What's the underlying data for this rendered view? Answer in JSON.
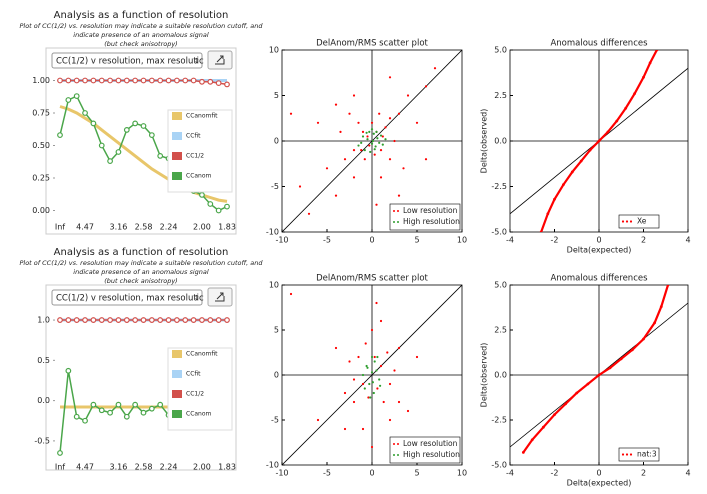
{
  "chart_data": [
    {
      "type": "line",
      "title": "Analysis as a function of resolution",
      "subtitle": [
        "Plot of CC(1/2) vs. resolution may indicate a suitable resolution cutoff, and",
        "indicate presence of an anomalous signal",
        "(but check anisotropy)"
      ],
      "selector": "CC(1/2) v resolution, max resolutic",
      "categories": [
        "Inf",
        null,
        null,
        "4.47",
        null,
        null,
        null,
        "3.16",
        null,
        null,
        "2.58",
        null,
        null,
        "2.24",
        null,
        null,
        null,
        "2.00",
        null,
        null,
        "1.83"
      ],
      "ylim": [
        -0.05,
        1.05
      ],
      "yticks": [
        {
          "value": 0,
          "label": "0.00"
        },
        0.25,
        {
          "value": 0.5,
          "label": "0.50"
        },
        0.75,
        {
          "value": 1,
          "label": "1.00"
        }
      ],
      "legend": "right",
      "series": [
        {
          "name": "CCanomfit",
          "color": "#e8c66a",
          "values": [
            0.8,
            0.78,
            0.75,
            0.71,
            0.67,
            0.62,
            0.57,
            0.52,
            0.47,
            0.42,
            0.37,
            0.32,
            0.28,
            0.24,
            0.2,
            0.17,
            0.14,
            0.12,
            0.1,
            0.08,
            0.07
          ]
        },
        {
          "name": "CCfit",
          "color": "#a9d3f5",
          "values": [
            1.0,
            1.0,
            1.0,
            1.0,
            1.0,
            1.0,
            1.0,
            1.0,
            1.0,
            1.0,
            1.0,
            1.0,
            1.0,
            1.0,
            1.0,
            1.0,
            1.0,
            1.0,
            1.0,
            1.0,
            1.0
          ]
        },
        {
          "name": "CC1/2",
          "color": "#d2504b",
          "marker": "circle",
          "values": [
            1.0,
            1.0,
            1.0,
            1.0,
            1.0,
            1.0,
            1.0,
            1.0,
            1.0,
            1.0,
            1.0,
            1.0,
            1.0,
            1.0,
            1.0,
            1.0,
            1.0,
            0.99,
            0.99,
            0.98,
            0.97
          ]
        },
        {
          "name": "CCanom",
          "color": "#4aa64a",
          "marker": "circle",
          "values": [
            0.58,
            0.85,
            0.88,
            0.75,
            0.67,
            0.5,
            0.38,
            0.45,
            0.62,
            0.67,
            0.65,
            0.58,
            0.42,
            0.4,
            0.3,
            0.2,
            0.15,
            0.12,
            0.05,
            0.0,
            0.03
          ]
        }
      ]
    },
    {
      "type": "scatter",
      "title": "DelAnom/RMS scatter plot",
      "xlim": [
        -10,
        10
      ],
      "ylim": [
        -10,
        10
      ],
      "xticks": [
        -10,
        -5,
        0,
        5,
        10
      ],
      "yticks": [
        -10,
        -5,
        0,
        5,
        10
      ],
      "legend": "lower right",
      "series": [
        {
          "name": "Low resolution",
          "color": "#ff0000",
          "x": [
            -8,
            -6,
            -5,
            -4,
            -3.5,
            -3,
            -2.5,
            -2,
            -2,
            -1.5,
            -1.2,
            -1,
            -0.8,
            -0.5,
            -0.3,
            0,
            0.3,
            0.5,
            0.8,
            1,
            1.2,
            1.5,
            2,
            2,
            2.5,
            3,
            3.5,
            4,
            5,
            6,
            7,
            -7,
            -9,
            3,
            -2,
            1,
            6,
            -4,
            2,
            0.5
          ],
          "values": [
            -5,
            2,
            -3,
            -6,
            1,
            -2,
            3,
            -1,
            -4,
            2,
            -1,
            1,
            -2,
            0.5,
            -0.5,
            2,
            -1.5,
            1,
            3,
            -1,
            0.5,
            1.5,
            -2,
            2.5,
            0,
            3,
            -3,
            5,
            2,
            6,
            8,
            -8,
            3,
            -6,
            5,
            -4,
            -2,
            4,
            7,
            -7
          ]
        },
        {
          "name": "High resolution",
          "color": "#2e9e2e",
          "x": [
            -1.5,
            -1,
            -0.8,
            -0.5,
            -0.3,
            0,
            0.2,
            0.4,
            0.6,
            0.8,
            1,
            1.2,
            -0.2,
            0,
            0.5,
            -0.6,
            0.3,
            1.5,
            -1.2,
            0.1
          ],
          "values": [
            -0.5,
            0.5,
            -1,
            0.2,
            1,
            -0.3,
            0.8,
            -0.6,
            0.3,
            -0.2,
            0.6,
            -0.4,
            -1.2,
            1.3,
            1,
            0.9,
            -0.9,
            0.2,
            -0.2,
            0
          ]
        }
      ]
    },
    {
      "type": "line",
      "title": "Anomalous differences",
      "xlabel": "Delta(expected)",
      "ylabel": "Delta(observed)",
      "xlim": [
        -4,
        4
      ],
      "ylim": [
        -5,
        5
      ],
      "xticks": [
        -4,
        -2,
        0,
        2,
        4
      ],
      "yticks": [
        {
          "value": -5,
          "label": "-5.0"
        },
        -2.5,
        {
          "value": 0,
          "label": "0.0"
        },
        2.5,
        {
          "value": 5,
          "label": "5.0"
        }
      ],
      "legend": "lower center",
      "series": [
        {
          "name": "Xe",
          "color": "#ff0000",
          "x": [
            -2.6,
            -2.3,
            -2.0,
            -1.6,
            -1.2,
            -0.8,
            -0.4,
            0,
            0.4,
            0.8,
            1.2,
            1.6,
            2.0,
            2.3,
            2.6
          ],
          "values": [
            -5,
            -4.0,
            -3.2,
            -2.4,
            -1.7,
            -1.1,
            -0.5,
            0,
            0.5,
            1.1,
            1.8,
            2.6,
            3.5,
            4.3,
            5.0
          ]
        }
      ]
    },
    {
      "type": "line",
      "title": "Analysis as a function of resolution",
      "subtitle": [
        "Plot of CC(1/2) vs. resolution may indicate a suitable resolution cutoff, and",
        "indicate presence of an anomalous signal",
        "(but check anisotropy)"
      ],
      "selector": "CC(1/2) v resolution, max resolutic",
      "categories": [
        "Inf",
        null,
        null,
        "4.47",
        null,
        null,
        null,
        "3.16",
        null,
        null,
        "2.58",
        null,
        null,
        "2.24",
        null,
        null,
        null,
        "2.00",
        null,
        null,
        "1.83"
      ],
      "ylim": [
        -0.7,
        1.1
      ],
      "yticks": [
        -0.5,
        {
          "value": 0,
          "label": "0.0"
        },
        0.5,
        {
          "value": 1,
          "label": "1.0"
        }
      ],
      "legend": "right",
      "series": [
        {
          "name": "CCanomfit",
          "color": "#e8c66a",
          "values": [
            -0.08,
            -0.08,
            -0.08,
            -0.08,
            -0.08,
            -0.08,
            -0.08,
            -0.08,
            -0.08,
            -0.08,
            -0.08,
            -0.08,
            -0.08,
            -0.08,
            -0.08,
            -0.08,
            -0.08,
            -0.08,
            -0.08,
            -0.08,
            -0.08
          ]
        },
        {
          "name": "CCfit",
          "color": "#a9d3f5",
          "values": [
            1.0,
            1.0,
            1.0,
            1.0,
            1.0,
            1.0,
            1.0,
            1.0,
            1.0,
            1.0,
            1.0,
            1.0,
            1.0,
            1.0,
            1.0,
            1.0,
            1.0,
            1.0,
            1.0,
            1.0,
            1.0
          ]
        },
        {
          "name": "CC1/2",
          "color": "#d2504b",
          "marker": "circle",
          "values": [
            1.0,
            1.0,
            1.0,
            1.0,
            1.0,
            1.0,
            1.0,
            1.0,
            1.0,
            1.0,
            1.0,
            1.0,
            1.0,
            1.0,
            1.0,
            1.0,
            1.0,
            1.0,
            1.0,
            1.0,
            1.0
          ]
        },
        {
          "name": "CCanom",
          "color": "#4aa64a",
          "marker": "circle",
          "values": [
            -0.65,
            0.37,
            -0.2,
            -0.25,
            -0.05,
            -0.12,
            -0.15,
            -0.05,
            -0.2,
            -0.05,
            -0.15,
            -0.1,
            -0.05,
            -0.18,
            -0.08,
            -0.12,
            -0.05,
            -0.15,
            -0.12,
            -0.1,
            -0.15
          ]
        }
      ]
    },
    {
      "type": "scatter",
      "title": "DelAnom/RMS scatter plot",
      "xlim": [
        -10,
        10
      ],
      "ylim": [
        -10,
        10
      ],
      "xticks": [
        -10,
        -5,
        0,
        5,
        10
      ],
      "yticks": [
        -10,
        -5,
        0,
        5,
        10
      ],
      "legend": "lower right",
      "series": [
        {
          "name": "Low resolution",
          "color": "#ff0000",
          "x": [
            -9,
            -6,
            -4,
            -3,
            -2.5,
            -2,
            -1.5,
            -1,
            -0.7,
            -0.4,
            0,
            0.3,
            0.6,
            1,
            1.3,
            1.7,
            2,
            2.5,
            3,
            4,
            5,
            7,
            -1,
            1,
            0,
            -2,
            2,
            -3,
            3,
            0.5
          ],
          "values": [
            9,
            -5,
            3,
            -2,
            1.5,
            -3,
            2,
            -1,
            3.5,
            -2.5,
            -8,
            2,
            -1.5,
            1,
            -3,
            2.5,
            -1,
            0.5,
            3,
            -4,
            2,
            -7,
            -6,
            6,
            5,
            -0.5,
            -5,
            -6,
            -3,
            8
          ]
        },
        {
          "name": "High resolution",
          "color": "#2e9e2e",
          "x": [
            -1,
            -0.6,
            -0.3,
            0,
            0.2,
            0.5,
            0.8,
            -0.8,
            0.3,
            -0.2,
            0,
            0.6,
            -0.5,
            0.1,
            0.9
          ],
          "values": [
            0,
            1,
            -1,
            2,
            -2,
            0.5,
            -0.5,
            -1.5,
            1.5,
            -2.5,
            0.3,
            2,
            0.8,
            -0.8,
            -1.2
          ]
        }
      ]
    },
    {
      "type": "line",
      "title": "Anomalous differences",
      "xlabel": "Delta(expected)",
      "ylabel": "Delta(observed)",
      "xlim": [
        -4,
        4
      ],
      "ylim": [
        -5,
        5
      ],
      "xticks": [
        -4,
        -2,
        0,
        2,
        4
      ],
      "yticks": [
        {
          "value": -5,
          "label": "-5.0"
        },
        -2.5,
        {
          "value": 0,
          "label": "0.0"
        },
        2.5,
        {
          "value": 5,
          "label": "5.0"
        }
      ],
      "legend": "lower center",
      "series": [
        {
          "name": "nat:3",
          "color": "#ff0000",
          "x": [
            -3.4,
            -3.0,
            -2.5,
            -2.0,
            -1.5,
            -1.0,
            -0.5,
            0,
            0.5,
            1.0,
            1.5,
            2.0,
            2.5,
            2.8,
            3.1
          ],
          "values": [
            -4.3,
            -3.6,
            -2.9,
            -2.2,
            -1.6,
            -1.0,
            -0.5,
            0,
            0.4,
            0.9,
            1.4,
            2.0,
            2.9,
            3.8,
            5.0
          ]
        }
      ]
    }
  ]
}
